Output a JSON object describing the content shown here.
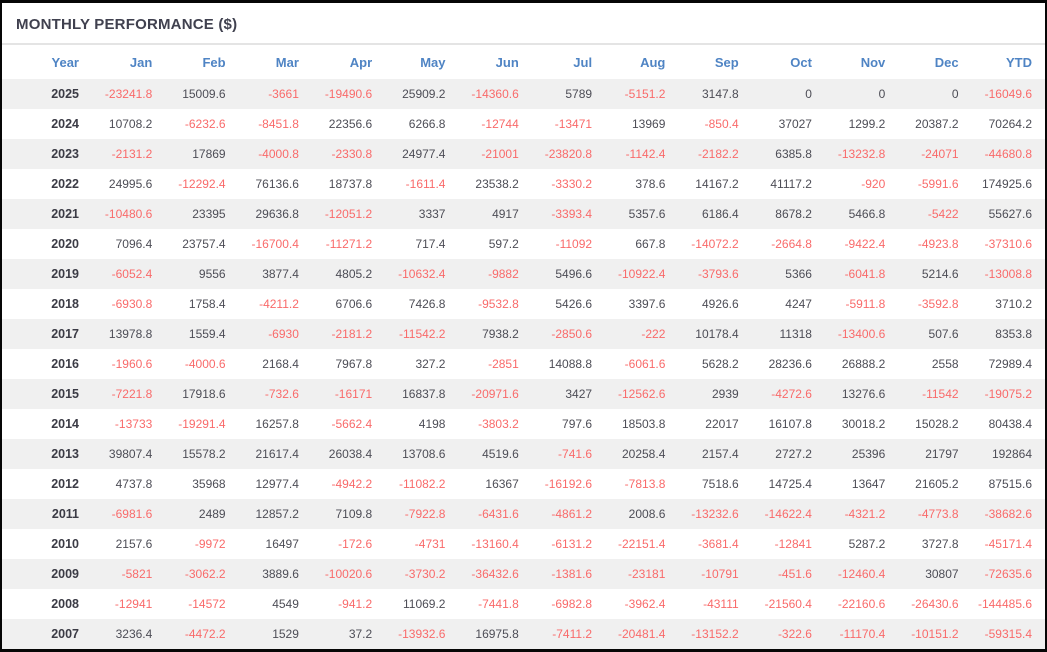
{
  "title": "MONTHLY PERFORMANCE ($)",
  "colors": {
    "header_text": "#4f84c4",
    "positive_value": "#4d4d56",
    "negative_value": "#f96a6a",
    "title_text": "#40414f",
    "row_stripe": "#f0f0f0",
    "frame_border": "#060606"
  },
  "chart_data": {
    "type": "table",
    "title": "MONTHLY PERFORMANCE ($)",
    "columns": [
      "Year",
      "Jan",
      "Feb",
      "Mar",
      "Apr",
      "May",
      "Jun",
      "Jul",
      "Aug",
      "Sep",
      "Oct",
      "Nov",
      "Dec",
      "YTD"
    ],
    "rows": [
      {
        "year": "2025",
        "values": [
          -23241.8,
          15009.6,
          -3661,
          -19490.6,
          25909.2,
          -14360.6,
          5789,
          -5151.2,
          3147.8,
          0,
          0,
          0,
          -16049.6
        ]
      },
      {
        "year": "2024",
        "values": [
          10708.2,
          -6232.6,
          -8451.8,
          22356.6,
          6266.8,
          -12744,
          -13471,
          13969,
          -850.4,
          37027,
          1299.2,
          20387.2,
          70264.2
        ]
      },
      {
        "year": "2023",
        "values": [
          -2131.2,
          17869,
          -4000.8,
          -2330.8,
          24977.4,
          -21001,
          -23820.8,
          -1142.4,
          -2182.2,
          6385.8,
          -13232.8,
          -24071,
          -44680.8
        ]
      },
      {
        "year": "2022",
        "values": [
          24995.6,
          -12292.4,
          76136.6,
          18737.8,
          -1611.4,
          23538.2,
          -3330.2,
          378.6,
          14167.2,
          41117.2,
          -920,
          -5991.6,
          174925.6
        ]
      },
      {
        "year": "2021",
        "values": [
          -10480.6,
          23395,
          29636.8,
          -12051.2,
          3337,
          4917,
          -3393.4,
          5357.6,
          6186.4,
          8678.2,
          5466.8,
          -5422,
          55627.6
        ]
      },
      {
        "year": "2020",
        "values": [
          7096.4,
          23757.4,
          -16700.4,
          -11271.2,
          717.4,
          597.2,
          -11092,
          667.8,
          -14072.2,
          -2664.8,
          -9422.4,
          -4923.8,
          -37310.6
        ]
      },
      {
        "year": "2019",
        "values": [
          -6052.4,
          9556,
          3877.4,
          4805.2,
          -10632.4,
          -9882,
          5496.6,
          -10922.4,
          -3793.6,
          5366,
          -6041.8,
          5214.6,
          -13008.8
        ]
      },
      {
        "year": "2018",
        "values": [
          -6930.8,
          1758.4,
          -4211.2,
          6706.6,
          7426.8,
          -9532.8,
          5426.6,
          3397.6,
          4926.6,
          4247,
          -5911.8,
          -3592.8,
          3710.2
        ]
      },
      {
        "year": "2017",
        "values": [
          13978.8,
          1559.4,
          -6930,
          -2181.2,
          -11542.2,
          7938.2,
          -2850.6,
          -222,
          10178.4,
          11318,
          -13400.6,
          507.6,
          8353.8
        ]
      },
      {
        "year": "2016",
        "values": [
          -1960.6,
          -4000.6,
          2168.4,
          7967.8,
          327.2,
          -2851,
          14088.8,
          -6061.6,
          5628.2,
          28236.6,
          26888.2,
          2558,
          72989.4
        ]
      },
      {
        "year": "2015",
        "values": [
          -7221.8,
          17918.6,
          -732.6,
          -16171,
          16837.8,
          -20971.6,
          3427,
          -12562.6,
          2939,
          -4272.6,
          13276.6,
          -11542,
          -19075.2
        ]
      },
      {
        "year": "2014",
        "values": [
          -13733,
          -19291.4,
          16257.8,
          -5662.4,
          4198,
          -3803.2,
          797.6,
          18503.8,
          22017,
          16107.8,
          30018.2,
          15028.2,
          80438.4
        ]
      },
      {
        "year": "2013",
        "values": [
          39807.4,
          15578.2,
          21617.4,
          26038.4,
          13708.6,
          4519.6,
          -741.6,
          20258.4,
          2157.4,
          2727.2,
          25396,
          21797,
          192864
        ]
      },
      {
        "year": "2012",
        "values": [
          4737.8,
          35968,
          12977.4,
          -4942.2,
          -11082.2,
          16367,
          -16192.6,
          -7813.8,
          7518.6,
          14725.4,
          13647,
          21605.2,
          87515.6
        ]
      },
      {
        "year": "2011",
        "values": [
          -6981.6,
          2489,
          12857.2,
          7109.8,
          -7922.8,
          -6431.6,
          -4861.2,
          2008.6,
          -13232.6,
          -14622.4,
          -4321.2,
          -4773.8,
          -38682.6
        ]
      },
      {
        "year": "2010",
        "values": [
          2157.6,
          -9972,
          16497,
          -172.6,
          -4731,
          -13160.4,
          -6131.2,
          -22151.4,
          -3681.4,
          -12841,
          5287.2,
          3727.8,
          -45171.4
        ]
      },
      {
        "year": "2009",
        "values": [
          -5821,
          -3062.2,
          3889.6,
          -10020.6,
          -3730.2,
          -36432.6,
          -1381.6,
          -23181,
          -10791,
          -451.6,
          -12460.4,
          30807,
          -72635.6
        ]
      },
      {
        "year": "2008",
        "values": [
          -12941,
          -14572,
          4549,
          -941.2,
          11069.2,
          -7441.8,
          -6982.8,
          -3962.4,
          -43111,
          -21560.4,
          -22160.6,
          -26430.6,
          -144485.6
        ]
      },
      {
        "year": "2007",
        "values": [
          3236.4,
          -4472.2,
          1529,
          37.2,
          -13932.6,
          16975.8,
          -7411.2,
          -20481.4,
          -13152.2,
          -322.6,
          -11170.4,
          -10151.2,
          -59315.4
        ]
      }
    ]
  }
}
